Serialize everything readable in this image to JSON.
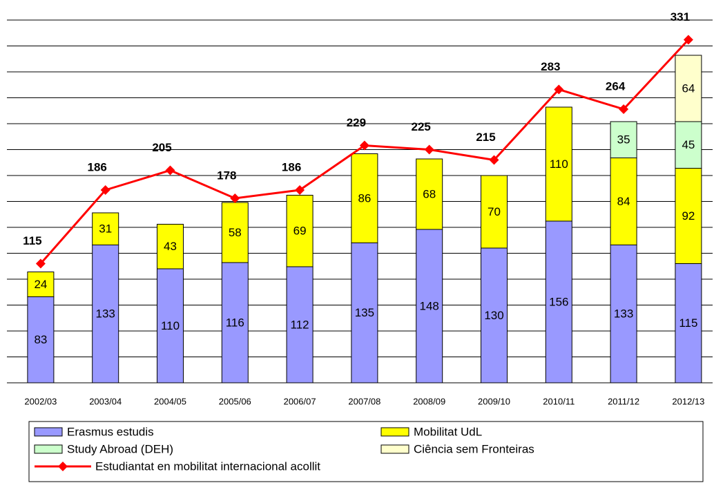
{
  "chart_data": {
    "type": "bar",
    "stacked": true,
    "categories": [
      "2002/03",
      "2003/04",
      "2004/05",
      "2005/06",
      "2006/07",
      "2007/08",
      "2008/09",
      "2009/10",
      "2010/11",
      "2011/12",
      "2012/13"
    ],
    "series": [
      {
        "name": "Erasmus estudis",
        "color": "#9999ff",
        "values": [
          83,
          133,
          110,
          116,
          112,
          135,
          148,
          130,
          156,
          133,
          115
        ]
      },
      {
        "name": "Mobilitat UdL",
        "color": "#ffff00",
        "values": [
          24,
          31,
          43,
          58,
          69,
          86,
          68,
          70,
          110,
          84,
          92
        ]
      },
      {
        "name": "Study Abroad (DEH)",
        "color": "#ccffcc",
        "values": [
          null,
          null,
          null,
          null,
          null,
          null,
          null,
          null,
          null,
          35,
          45
        ]
      },
      {
        "name": "Ciência sem Fronteiras",
        "color": "#ffffcc",
        "values": [
          null,
          null,
          null,
          null,
          null,
          null,
          null,
          null,
          null,
          null,
          64
        ]
      },
      {
        "name": "Estudiantat en mobilitat internacional acollit",
        "color": "#ff0000",
        "type": "line",
        "values": [
          115,
          186,
          205,
          178,
          186,
          229,
          225,
          215,
          283,
          264,
          331
        ]
      }
    ],
    "ylim": [
      0,
      350
    ],
    "yticks": [
      0,
      25,
      50,
      75,
      100,
      125,
      150,
      175,
      200,
      225,
      250,
      275,
      300,
      325,
      350
    ],
    "grid": true,
    "legend": "bottom"
  }
}
